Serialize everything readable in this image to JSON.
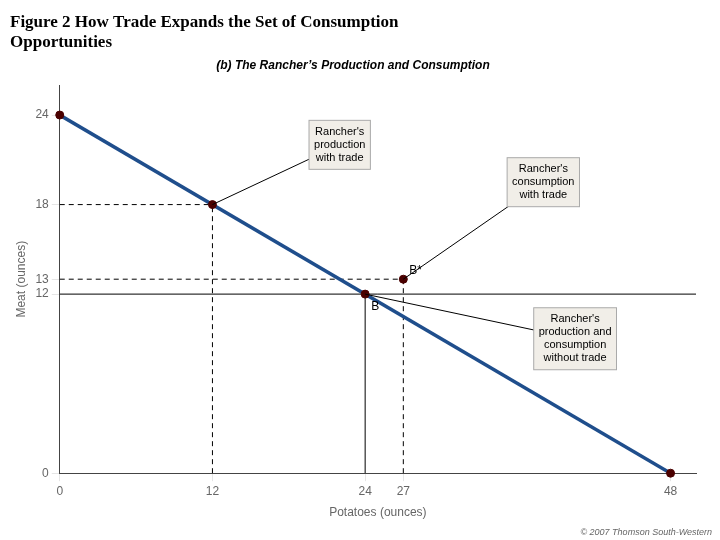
{
  "chart_data": {
    "type": "line",
    "title": "Figure 2 How Trade Expands the Set of Consumption\nOpportunities",
    "subtitle": "(b) The Rancher’s Production and Consumption",
    "xlabel": "Potatoes (ounces)",
    "ylabel": "Meat (ounces)",
    "xlim": [
      0,
      50
    ],
    "ylim": [
      0,
      26
    ],
    "xticks": [
      0,
      12,
      24,
      27,
      48
    ],
    "yticks": [
      0,
      12,
      13,
      18,
      24
    ],
    "grid": false,
    "series": [
      {
        "x": [
          0,
          48
        ],
        "values": [
          24,
          0
        ],
        "color": "#1f4e8c",
        "line_style": "solid",
        "marker": "none"
      },
      {
        "type": "scatter",
        "x": [
          0,
          12,
          24,
          27,
          48
        ],
        "values": [
          24,
          18,
          12,
          13,
          0
        ],
        "color": "#4a0000",
        "line_style": "none",
        "marker": "circle"
      },
      {
        "x": [
          12,
          12
        ],
        "values": [
          0,
          18
        ],
        "color": "#000000",
        "line_style": "dashed",
        "marker": "none"
      },
      {
        "x": [
          0,
          12
        ],
        "values": [
          18,
          18
        ],
        "color": "#000000",
        "line_style": "dashed",
        "marker": "none"
      },
      {
        "x": [
          0,
          27
        ],
        "values": [
          13,
          13
        ],
        "color": "#000000",
        "line_style": "dashed",
        "marker": "none"
      },
      {
        "x": [
          27,
          27
        ],
        "values": [
          0,
          13
        ],
        "color": "#000000",
        "line_style": "dashed",
        "marker": "none"
      },
      {
        "x": [
          24,
          24
        ],
        "values": [
          0,
          12
        ],
        "color": "#000000",
        "line_style": "solid",
        "marker": "none"
      },
      {
        "x": [
          0,
          50
        ],
        "values": [
          12,
          12
        ],
        "color": "#000000",
        "line_style": "solid",
        "marker": "none"
      }
    ],
    "annotations": [
      {
        "text": "Rancher's\nproduction\nwith trade",
        "x": 12,
        "y": 18
      },
      {
        "text": "Rancher's\nconsumption\nwith trade",
        "x": 27,
        "y": 13
      },
      {
        "text": "Rancher's\nproduction and\nconsumption\nwithout trade",
        "x": 24,
        "y": 12
      },
      {
        "text": "B",
        "x": 24,
        "y": 12
      },
      {
        "text": "B*",
        "x": 27,
        "y": 13
      }
    ],
    "caption": "© 2007 Thomson South-Western"
  }
}
